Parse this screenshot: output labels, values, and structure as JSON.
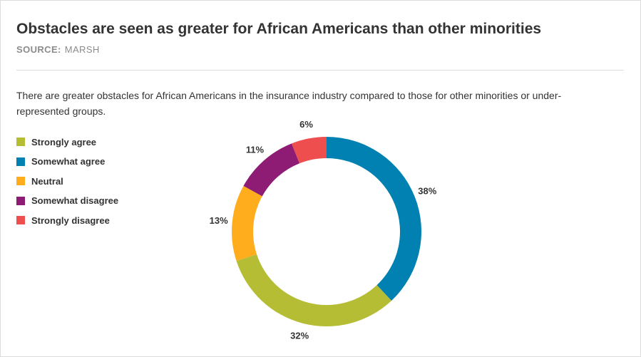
{
  "header": {
    "title": "Obstacles are seen as greater for African Americans than other minorities",
    "source_label": "SOURCE:",
    "source_value": "MARSH"
  },
  "subtitle": "There are greater obstacles for African Americans in the insurance industry compared to those for other minorities or under-represented groups.",
  "chart_data": {
    "type": "pie",
    "variant": "donut",
    "legend_position": "left",
    "value_suffix": "%",
    "slices": [
      {
        "label": "Strongly agree",
        "value": 32,
        "display": "32%",
        "color": "#b5bd35"
      },
      {
        "label": "Somewhat agree",
        "value": 38,
        "display": "38%",
        "color": "#0081b2"
      },
      {
        "label": "Neutral",
        "value": 13,
        "display": "13%",
        "color": "#ffad1d"
      },
      {
        "label": "Somewhat disagree",
        "value": 11,
        "display": "11%",
        "color": "#8e1c74"
      },
      {
        "label": "Strongly disagree",
        "value": 6,
        "display": "6%",
        "color": "#ef4e4e"
      }
    ],
    "draw_order": [
      1,
      0,
      2,
      3,
      4
    ]
  }
}
